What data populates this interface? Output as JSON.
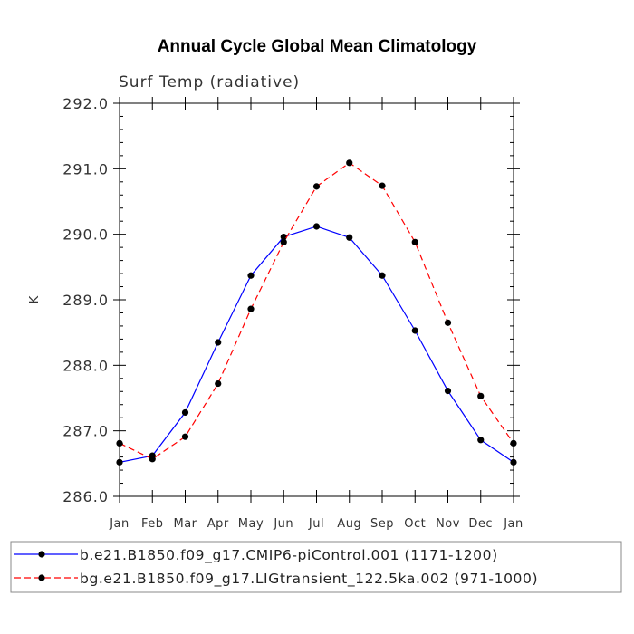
{
  "chart_data": {
    "type": "line",
    "title": "Annual Cycle Global Mean Climatology",
    "subtitle": "Surf Temp (radiative)",
    "xlabel": "",
    "ylabel": "K",
    "categories": [
      "Jan",
      "Feb",
      "Mar",
      "Apr",
      "May",
      "Jun",
      "Jul",
      "Aug",
      "Sep",
      "Oct",
      "Nov",
      "Dec",
      "Jan"
    ],
    "ylim": [
      286.0,
      292.0
    ],
    "yticks": [
      "286.0",
      "287.0",
      "288.0",
      "289.0",
      "290.0",
      "291.0",
      "292.0"
    ],
    "series": [
      {
        "name": "b.e21.B1850.f09_g17.CMIP6-piControl.001 (1171-1200)",
        "color": "#0000ff",
        "dash": "solid",
        "values": [
          286.52,
          286.62,
          287.28,
          288.35,
          289.37,
          289.96,
          290.12,
          289.95,
          289.37,
          288.53,
          287.61,
          286.86,
          286.52
        ]
      },
      {
        "name": "bg.e21.B1850.f09_g17.LIGtransient_122.5ka.002 (971-1000)",
        "color": "#ff0000",
        "dash": "dashed",
        "values": [
          286.81,
          286.57,
          286.91,
          287.72,
          288.86,
          289.88,
          290.73,
          291.09,
          290.74,
          289.88,
          288.65,
          287.53,
          286.81
        ]
      }
    ],
    "grid": false,
    "legend_position": "bottom"
  }
}
